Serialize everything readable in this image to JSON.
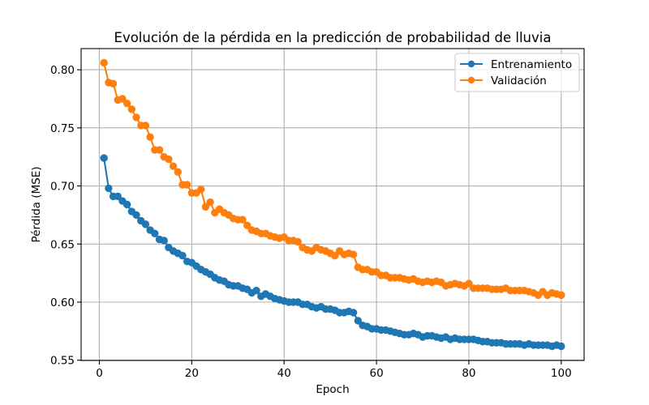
{
  "chart_data": {
    "type": "line",
    "title": "Evolución de la pérdida en la predicción de probabilidad de lluvia",
    "xlabel": "Epoch",
    "ylabel": "Pérdida (MSE)",
    "xlim": [
      -3.95,
      104.95
    ],
    "ylim": [
      0.5498,
      0.8182
    ],
    "xticks": [
      0,
      20,
      40,
      60,
      80,
      100
    ],
    "xtick_labels": [
      "0",
      "20",
      "40",
      "60",
      "80",
      "100"
    ],
    "yticks": [
      0.55,
      0.6,
      0.65,
      0.7,
      0.75,
      0.8
    ],
    "ytick_labels": [
      "0.55",
      "0.60",
      "0.65",
      "0.70",
      "0.75",
      "0.80"
    ],
    "grid": true,
    "legend": "top-right",
    "marker": "circle",
    "x": [
      1,
      2,
      3,
      4,
      5,
      6,
      7,
      8,
      9,
      10,
      11,
      12,
      13,
      14,
      15,
      16,
      17,
      18,
      19,
      20,
      21,
      22,
      23,
      24,
      25,
      26,
      27,
      28,
      29,
      30,
      31,
      32,
      33,
      34,
      35,
      36,
      37,
      38,
      39,
      40,
      41,
      42,
      43,
      44,
      45,
      46,
      47,
      48,
      49,
      50,
      51,
      52,
      53,
      54,
      55,
      56,
      57,
      58,
      59,
      60,
      61,
      62,
      63,
      64,
      65,
      66,
      67,
      68,
      69,
      70,
      71,
      72,
      73,
      74,
      75,
      76,
      77,
      78,
      79,
      80,
      81,
      82,
      83,
      84,
      85,
      86,
      87,
      88,
      89,
      90,
      91,
      92,
      93,
      94,
      95,
      96,
      97,
      98,
      99,
      100
    ],
    "series": [
      {
        "name": "Entrenamiento",
        "color": "#1f77b4",
        "values": [
          0.724,
          0.698,
          0.691,
          0.691,
          0.687,
          0.684,
          0.678,
          0.675,
          0.67,
          0.667,
          0.662,
          0.659,
          0.654,
          0.653,
          0.647,
          0.644,
          0.642,
          0.64,
          0.635,
          0.634,
          0.631,
          0.628,
          0.626,
          0.624,
          0.621,
          0.619,
          0.618,
          0.615,
          0.614,
          0.614,
          0.612,
          0.611,
          0.608,
          0.61,
          0.605,
          0.607,
          0.605,
          0.603,
          0.602,
          0.601,
          0.6,
          0.6,
          0.6,
          0.598,
          0.598,
          0.596,
          0.595,
          0.596,
          0.594,
          0.594,
          0.593,
          0.591,
          0.591,
          0.592,
          0.591,
          0.584,
          0.58,
          0.579,
          0.577,
          0.577,
          0.576,
          0.576,
          0.575,
          0.574,
          0.573,
          0.572,
          0.572,
          0.573,
          0.572,
          0.57,
          0.571,
          0.571,
          0.57,
          0.569,
          0.57,
          0.568,
          0.569,
          0.568,
          0.568,
          0.568,
          0.568,
          0.567,
          0.566,
          0.566,
          0.565,
          0.565,
          0.565,
          0.564,
          0.564,
          0.564,
          0.564,
          0.563,
          0.564,
          0.563,
          0.563,
          0.563,
          0.563,
          0.562,
          0.563,
          0.562
        ]
      },
      {
        "name": "Validación",
        "color": "#ff7f0e",
        "values": [
          0.806,
          0.789,
          0.788,
          0.774,
          0.775,
          0.771,
          0.766,
          0.759,
          0.752,
          0.752,
          0.742,
          0.731,
          0.731,
          0.725,
          0.723,
          0.717,
          0.712,
          0.701,
          0.701,
          0.694,
          0.694,
          0.697,
          0.682,
          0.686,
          0.677,
          0.68,
          0.677,
          0.675,
          0.672,
          0.671,
          0.671,
          0.666,
          0.662,
          0.661,
          0.659,
          0.659,
          0.657,
          0.656,
          0.655,
          0.656,
          0.653,
          0.653,
          0.652,
          0.647,
          0.645,
          0.644,
          0.647,
          0.645,
          0.644,
          0.642,
          0.64,
          0.644,
          0.641,
          0.642,
          0.641,
          0.63,
          0.628,
          0.628,
          0.626,
          0.626,
          0.623,
          0.623,
          0.621,
          0.621,
          0.621,
          0.62,
          0.619,
          0.62,
          0.618,
          0.617,
          0.618,
          0.617,
          0.618,
          0.617,
          0.614,
          0.615,
          0.616,
          0.615,
          0.614,
          0.616,
          0.612,
          0.612,
          0.612,
          0.612,
          0.611,
          0.611,
          0.611,
          0.612,
          0.61,
          0.61,
          0.61,
          0.61,
          0.609,
          0.608,
          0.606,
          0.609,
          0.606,
          0.608,
          0.607,
          0.606
        ]
      }
    ]
  }
}
